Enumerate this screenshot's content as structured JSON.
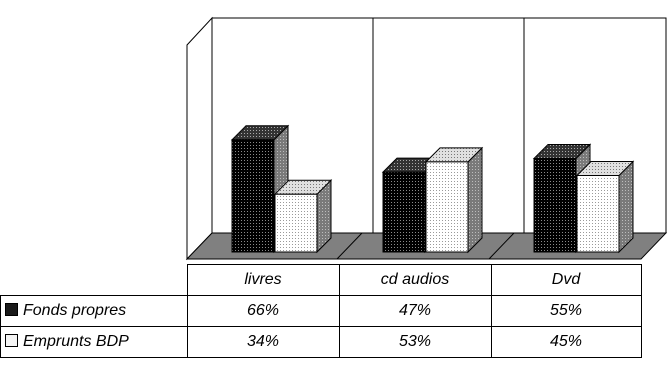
{
  "chart_data": {
    "type": "bar",
    "categories": [
      "livres",
      "cd audios",
      "Dvd"
    ],
    "series": [
      {
        "name": "Fonds propres",
        "values": [
          66,
          47,
          55
        ],
        "labels": [
          "66%",
          "47%",
          "55%"
        ],
        "color": "#1a1a1a"
      },
      {
        "name": "Emprunts BDP",
        "values": [
          34,
          53,
          45
        ],
        "labels": [
          "34%",
          "53%",
          "45%"
        ],
        "color": "#f4f4f4"
      }
    ],
    "ylim": [
      0,
      100
    ],
    "grid": false,
    "legend": "data-table-left",
    "colors": {
      "wall": "#ffffff",
      "floor": "#808080",
      "side": "#808080"
    }
  }
}
